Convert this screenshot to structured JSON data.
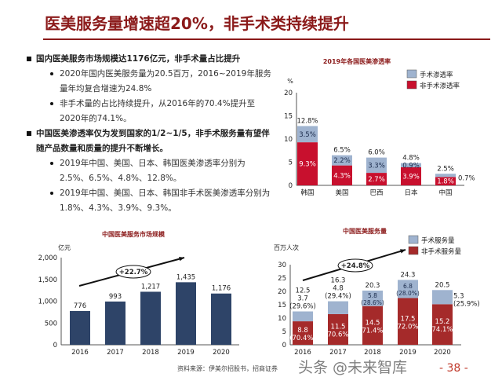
{
  "title": "医美服务量增速超20%，非手术类持续提升",
  "bullets": [
    {
      "text": "国内医美服务市场规模达1176亿元，非手术量占比提升",
      "sub": [
        "2020年国内医美服务量为20.5百万，2016~2019年服务量年均复合增速为24.8%",
        "非手术量的占比持续提升，从2016年的70.4%提升至2020年的74.1%。"
      ]
    },
    {
      "text": "中国医美渗透率仅为发到国家的1/2~1/5，非手术服务量有望伴随产品数量和质量的提升不断增长。",
      "sub": [
        "2019年中国、美国、日本、韩国医美渗透率分别为2.5%、6.5%、4.8%、12.8%。",
        "2019年中国、美国、日本、韩国非手术医美渗透率分别为1.8%、4.3%、3.9%、9.3%。"
      ]
    }
  ],
  "footer": {
    "source": "资料来源：伊美尔招股书，招商证券",
    "page": "- 38 -",
    "watermark": "头条 @未来智库"
  },
  "chart_data": [
    {
      "type": "bar",
      "stacked": true,
      "title": "2019年各国医美渗透率",
      "ylabel": "%",
      "ylim": [
        0,
        20
      ],
      "yticks": [
        "0",
        "5",
        "10",
        "15",
        "20"
      ],
      "categories": [
        "韩国",
        "美国",
        "巴西",
        "日本",
        "中国"
      ],
      "series": [
        {
          "name": "非手术渗透率",
          "values": [
            9.3,
            4.3,
            2.7,
            3.9,
            1.8
          ],
          "labels": [
            "9.3%",
            "4.3%",
            "2.7%",
            "3.9%",
            "1.8%"
          ],
          "color": "#c8102e"
        },
        {
          "name": "手术渗透率",
          "values": [
            3.5,
            2.2,
            3.3,
            0.9,
            0.7
          ],
          "labels": [
            "3.5%",
            "2.2%",
            "3.3%",
            "0.9%",
            "0.7%"
          ],
          "color": "#9fb3cf"
        }
      ],
      "totals": [
        "12.8%",
        "6.5%",
        "6.0%",
        "4.8%",
        "2.5%"
      ],
      "legend": "top-right"
    },
    {
      "type": "bar",
      "title": "中国医美服务市场规模",
      "ylabel": "亿元",
      "ylim": [
        0,
        2000
      ],
      "yticks": [
        "0",
        "500",
        "1,000",
        "1,500",
        "2,000"
      ],
      "categories": [
        "2016",
        "2017",
        "2018",
        "2019",
        "2020"
      ],
      "values": [
        776,
        993,
        1217,
        1435,
        1176
      ],
      "labels": [
        "776",
        "993",
        "1,217",
        "1,435",
        "1,176"
      ],
      "color": "#2e4468",
      "annotation": "+22.7%"
    },
    {
      "type": "bar",
      "stacked": true,
      "title": "中国医美服务量",
      "ylabel": "百万人次",
      "ylim": [
        0,
        30
      ],
      "yticks": [
        "0",
        "5",
        "10",
        "15",
        "20",
        "25",
        "30"
      ],
      "categories": [
        "2016",
        "2017",
        "2018",
        "2019",
        "2020"
      ],
      "series": [
        {
          "name": "非手术服务量",
          "values": [
            8.8,
            11.5,
            14.5,
            17.5,
            15.2
          ],
          "shares": [
            "(70.4%)",
            "(70.6%)",
            "(71.4%)",
            "(72.0%)",
            "(74.1%)"
          ],
          "color": "#a52a2a"
        },
        {
          "name": "手术服务量",
          "values": [
            3.7,
            4.8,
            5.8,
            6.8,
            5.3
          ],
          "shares": [
            "(29.6%)",
            "(29.4%)",
            "(28.6%)",
            "(28.0%)",
            "(25.9%)"
          ],
          "color": "#9fb3cf"
        }
      ],
      "totals": [
        "12.5",
        "16.3",
        "20.3",
        "24.3",
        "20.5"
      ],
      "annotation": "+24.8%",
      "legend": "top-right"
    }
  ]
}
